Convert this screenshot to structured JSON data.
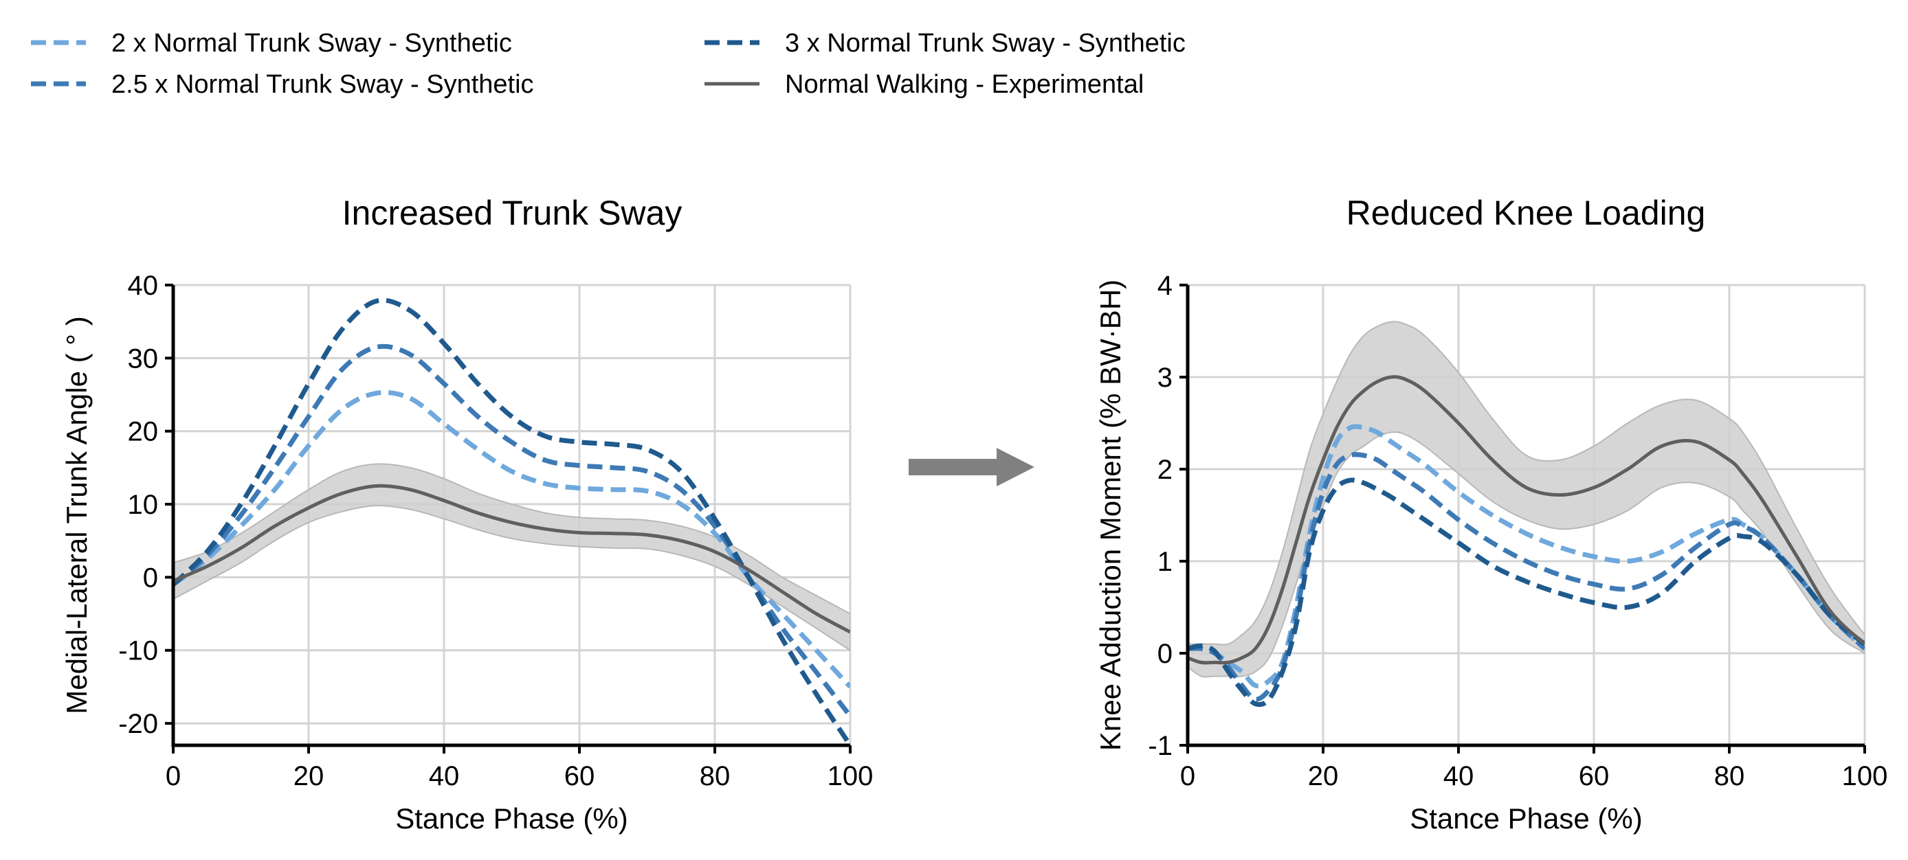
{
  "colors": {
    "sway_2x": "#6fa8dc",
    "sway_2_5x": "#3d7ab5",
    "sway_3x": "#1f5a8e",
    "experimental": "#5f5f5f",
    "band": "#cfcfcf",
    "arrow": "#808080"
  },
  "legend": [
    {
      "label": "2 x Normal Trunk Sway - Synthetic",
      "style": "dashed",
      "color_key": "sway_2x"
    },
    {
      "label": "2.5 x Normal Trunk Sway - Synthetic",
      "style": "dashed",
      "color_key": "sway_2_5x"
    },
    {
      "label": "3 x Normal Trunk Sway - Synthetic",
      "style": "dashed",
      "color_key": "sway_3x"
    },
    {
      "label": "Normal Walking - Experimental",
      "style": "solid",
      "color_key": "experimental"
    }
  ],
  "arrow_icon": "right-arrow",
  "chart_data": [
    {
      "type": "line",
      "title": "Increased Trunk Sway",
      "xlabel": "Stance Phase (%)",
      "ylabel": "Medial-Lateral Trunk Angle ( ° )",
      "xlim": [
        0,
        100
      ],
      "ylim": [
        -23,
        40
      ],
      "xticks": [
        0,
        20,
        40,
        60,
        80,
        100
      ],
      "yticks": [
        -20,
        -10,
        0,
        10,
        20,
        30,
        40
      ],
      "grid": true,
      "x": [
        0,
        5,
        10,
        15,
        20,
        25,
        30,
        35,
        40,
        45,
        50,
        55,
        60,
        65,
        70,
        75,
        80,
        85,
        90,
        95,
        100
      ],
      "series": [
        {
          "name": "2 x Normal Trunk Sway - Synthetic",
          "color_key": "sway_2x",
          "style": "dashed",
          "values": [
            -1,
            2.5,
            7,
            12,
            18,
            23,
            25.2,
            24.5,
            21,
            17.5,
            14.5,
            12.8,
            12.2,
            12,
            11.8,
            10,
            6,
            0,
            -5,
            -10,
            -15
          ]
        },
        {
          "name": "2.5 x Normal Trunk Sway - Synthetic",
          "color_key": "sway_2_5x",
          "style": "dashed",
          "values": [
            -1,
            3,
            8.5,
            15,
            22,
            28.5,
            31.5,
            30.5,
            26.5,
            22,
            18.5,
            16,
            15.3,
            15,
            14.5,
            12,
            7,
            0,
            -7,
            -13,
            -19
          ]
        },
        {
          "name": "3 x Normal Trunk Sway - Synthetic",
          "color_key": "sway_3x",
          "style": "dashed",
          "values": [
            -1,
            3.5,
            10,
            18,
            26.5,
            34,
            37.8,
            36.5,
            32,
            26.5,
            22,
            19.3,
            18.5,
            18.2,
            17.5,
            14.5,
            8,
            0,
            -8.5,
            -16,
            -23
          ]
        },
        {
          "name": "Normal Walking - Experimental",
          "color_key": "experimental",
          "style": "solid",
          "values": [
            -0.5,
            1.5,
            4,
            7,
            9.5,
            11.5,
            12.5,
            12,
            10.5,
            8.8,
            7.5,
            6.6,
            6.1,
            6,
            5.8,
            5,
            3.5,
            1,
            -2,
            -5,
            -7.5
          ]
        }
      ],
      "band": {
        "color_key": "band",
        "upper": [
          2,
          3.5,
          6,
          9,
          12,
          14.5,
          15.5,
          15,
          13.5,
          11.5,
          10,
          8.8,
          8.2,
          8,
          7.8,
          7,
          5.5,
          3,
          0,
          -2.5,
          -5
        ],
        "lower": [
          -3,
          -0.5,
          2,
          5,
          7.5,
          9,
          9.8,
          9.3,
          8,
          6.5,
          5.3,
          4.6,
          4.2,
          4,
          3.9,
          3,
          1.5,
          -1,
          -4,
          -7,
          -10
        ]
      }
    },
    {
      "type": "line",
      "title": "Reduced Knee Loading",
      "xlabel": "Stance Phase (%)",
      "ylabel": "Knee Adduction Moment (% BW·BH)",
      "xlim": [
        0,
        100
      ],
      "ylim": [
        -1,
        4
      ],
      "xticks": [
        0,
        20,
        40,
        60,
        80,
        100
      ],
      "yticks": [
        -1,
        0,
        1,
        2,
        3,
        4
      ],
      "grid": true,
      "x": [
        0,
        2,
        4,
        6,
        8,
        10,
        12,
        14,
        16,
        18,
        20,
        22,
        24,
        26,
        28,
        30,
        32,
        35,
        40,
        45,
        50,
        55,
        60,
        65,
        70,
        75,
        80,
        82,
        85,
        90,
        95,
        100
      ],
      "series": [
        {
          "name": "2 x Normal Trunk Sway - Synthetic",
          "color_key": "sway_2x",
          "style": "dashed",
          "values": [
            0.05,
            0.05,
            0,
            -0.1,
            -0.2,
            -0.35,
            -0.3,
            -0.1,
            0.5,
            1.3,
            1.9,
            2.3,
            2.45,
            2.45,
            2.4,
            2.3,
            2.2,
            2.05,
            1.75,
            1.5,
            1.3,
            1.15,
            1.05,
            1.0,
            1.1,
            1.3,
            1.45,
            1.4,
            1.25,
            0.85,
            0.4,
            0.05
          ]
        },
        {
          "name": "2.5 x Normal Trunk Sway - Synthetic",
          "color_key": "sway_2_5x",
          "style": "dashed",
          "values": [
            0.05,
            0.05,
            0,
            -0.15,
            -0.35,
            -0.5,
            -0.4,
            -0.15,
            0.4,
            1.2,
            1.75,
            2.05,
            2.15,
            2.15,
            2.1,
            2.0,
            1.9,
            1.75,
            1.45,
            1.2,
            1.0,
            0.85,
            0.75,
            0.7,
            0.85,
            1.15,
            1.4,
            1.38,
            1.25,
            0.85,
            0.4,
            0.05
          ]
        },
        {
          "name": "3 x Normal Trunk Sway - Synthetic",
          "color_key": "sway_3x",
          "style": "dashed",
          "values": [
            0.05,
            0.08,
            0.02,
            -0.2,
            -0.4,
            -0.55,
            -0.5,
            -0.2,
            0.3,
            1.1,
            1.55,
            1.8,
            1.88,
            1.85,
            1.78,
            1.7,
            1.6,
            1.45,
            1.2,
            0.95,
            0.78,
            0.65,
            0.55,
            0.5,
            0.65,
            1.0,
            1.25,
            1.27,
            1.2,
            0.85,
            0.4,
            0.1
          ]
        },
        {
          "name": "Normal Walking - Experimental",
          "color_key": "experimental",
          "style": "solid",
          "values": [
            -0.05,
            -0.1,
            -0.1,
            -0.1,
            -0.05,
            0.05,
            0.3,
            0.7,
            1.2,
            1.7,
            2.1,
            2.45,
            2.7,
            2.85,
            2.95,
            3.0,
            2.98,
            2.85,
            2.5,
            2.1,
            1.8,
            1.72,
            1.8,
            2.0,
            2.25,
            2.3,
            2.1,
            1.95,
            1.65,
            1.05,
            0.45,
            0.1
          ]
        }
      ],
      "band": {
        "color_key": "band",
        "upper": [
          0.1,
          0.1,
          0.1,
          0.1,
          0.2,
          0.35,
          0.65,
          1.1,
          1.65,
          2.2,
          2.6,
          2.95,
          3.25,
          3.45,
          3.55,
          3.6,
          3.58,
          3.45,
          3.05,
          2.55,
          2.15,
          2.1,
          2.25,
          2.5,
          2.7,
          2.75,
          2.55,
          2.4,
          2.05,
          1.35,
          0.7,
          0.2
        ],
        "lower": [
          -0.15,
          -0.25,
          -0.25,
          -0.25,
          -0.25,
          -0.2,
          -0.05,
          0.3,
          0.75,
          1.2,
          1.6,
          1.95,
          2.15,
          2.25,
          2.35,
          2.4,
          2.38,
          2.25,
          1.95,
          1.65,
          1.45,
          1.35,
          1.4,
          1.55,
          1.8,
          1.85,
          1.7,
          1.55,
          1.3,
          0.75,
          0.25,
          0.0
        ]
      }
    }
  ]
}
